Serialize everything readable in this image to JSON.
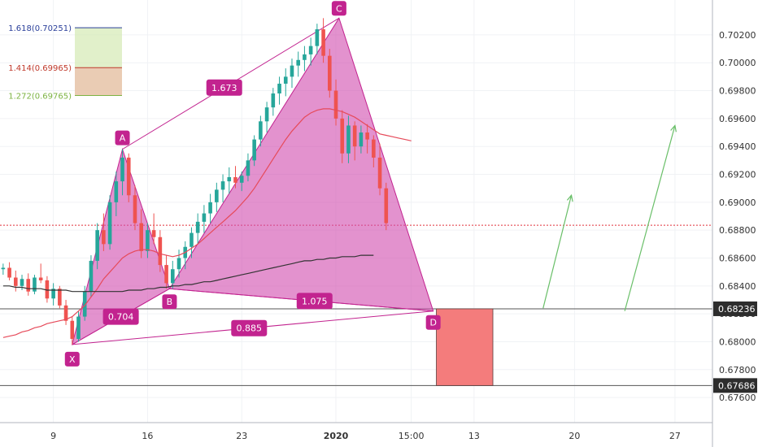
{
  "chart_data": {
    "type": "candlestick",
    "instrument_note": "",
    "y_axis": {
      "ylim": [
        0.6742,
        0.7045
      ],
      "ticks": [
        0.676,
        0.678,
        0.68,
        0.682,
        0.684,
        0.686,
        0.688,
        0.69,
        0.692,
        0.694,
        0.696,
        0.698,
        0.7,
        0.702
      ],
      "tick_labels": [
        "0.67600",
        "0.67800",
        "0.68000",
        "0.68200",
        "0.68400",
        "0.68600",
        "0.68800",
        "0.69000",
        "0.69200",
        "0.69400",
        "0.69600",
        "0.69800",
        "0.70000",
        "0.70200"
      ],
      "price_badges": [
        {
          "value": 0.68236,
          "label": "0.68236"
        },
        {
          "value": 0.67686,
          "label": "0.67686"
        }
      ]
    },
    "x_axis": {
      "ticks": [
        {
          "slot": 8.5,
          "label": "9"
        },
        {
          "slot": 23.5,
          "label": "16"
        },
        {
          "slot": 38.5,
          "label": "23"
        },
        {
          "slot": 53.5,
          "label": "2020"
        },
        {
          "slot": 65.5,
          "label": "15:00"
        },
        {
          "slot": 75.5,
          "label": "13"
        },
        {
          "slot": 91.5,
          "label": "20"
        },
        {
          "slot": 107.5,
          "label": "27"
        }
      ]
    },
    "horizontal_lines": [
      {
        "value": 0.68236,
        "style": "solid",
        "color": "#555555"
      },
      {
        "value": 0.67686,
        "style": "solid",
        "color": "#555555"
      },
      {
        "value": 0.68835,
        "style": "dotted",
        "color": "#e0303a"
      }
    ],
    "fib_extension": {
      "levels": [
        {
          "value": 0.70251,
          "label": "1.618(0.70251)",
          "color": "#2a3f9a"
        },
        {
          "value": 0.69965,
          "label": "1.414(0.69965)",
          "color": "#c0392b"
        },
        {
          "value": 0.69765,
          "label": "1.272(0.69765)",
          "color": "#7cb342"
        }
      ]
    },
    "pattern": {
      "points": [
        {
          "name": "X",
          "slot": 11.5,
          "value": 0.6798
        },
        {
          "name": "A",
          "slot": 19.5,
          "value": 0.6938
        },
        {
          "name": "B",
          "slot": 27.0,
          "value": 0.6838
        },
        {
          "name": "C",
          "slot": 54.0,
          "value": 0.7032
        },
        {
          "name": "D",
          "slot": 69.0,
          "value": 0.6822
        }
      ],
      "ratios": [
        {
          "label": "1.673",
          "between": "A-C"
        },
        {
          "label": "0.704",
          "between": "X-B"
        },
        {
          "label": "1.075",
          "between": "B-D"
        },
        {
          "label": "0.885",
          "between": "X-D"
        }
      ],
      "fill_color": "#d24fb0",
      "line_color": "#c2238f"
    },
    "target_box": {
      "slot_from": 69.5,
      "slot_to": 78.5,
      "top": 0.68236,
      "bottom": 0.67686,
      "color": "#f47c7c"
    },
    "projection_arrows": [
      {
        "from": [
          86.5,
          0.6824
        ],
        "to": [
          91.0,
          0.6905
        ]
      },
      {
        "from": [
          99.5,
          0.6822
        ],
        "to": [
          107.5,
          0.6955
        ]
      }
    ],
    "moving_averages": [
      {
        "color": "#e64a5a",
        "values": [
          0.6803,
          0.6804,
          0.6805,
          0.6807,
          0.6808,
          0.681,
          0.6811,
          0.6813,
          0.6814,
          0.6815,
          0.6816,
          0.6818,
          0.6822,
          0.6826,
          0.6832,
          0.6838,
          0.6845,
          0.685,
          0.6855,
          0.686,
          0.6863,
          0.6865,
          0.6866,
          0.6866,
          0.6865,
          0.6863,
          0.6862,
          0.6861,
          0.6862,
          0.6864,
          0.6867,
          0.687,
          0.6874,
          0.6878,
          0.6882,
          0.6886,
          0.689,
          0.6894,
          0.6899,
          0.6904,
          0.691,
          0.6917,
          0.6924,
          0.6931,
          0.6938,
          0.6945,
          0.6951,
          0.6956,
          0.6961,
          0.6964,
          0.6966,
          0.6967,
          0.6967,
          0.6966,
          0.6965,
          0.6963,
          0.6961,
          0.6958,
          0.6955,
          0.6952,
          0.6949,
          0.6948,
          0.6947,
          0.6946,
          0.6945,
          0.6944
        ]
      },
      {
        "color": "#333333",
        "values": [
          0.684,
          0.684,
          0.6839,
          0.6839,
          0.6838,
          0.6838,
          0.6838,
          0.6837,
          0.6837,
          0.6837,
          0.6837,
          0.6836,
          0.6836,
          0.6836,
          0.6836,
          0.6836,
          0.6836,
          0.6836,
          0.6836,
          0.6836,
          0.6837,
          0.6837,
          0.6837,
          0.6838,
          0.6838,
          0.6839,
          0.6839,
          0.684,
          0.684,
          0.6841,
          0.6841,
          0.6842,
          0.6843,
          0.6843,
          0.6844,
          0.6845,
          0.6846,
          0.6847,
          0.6848,
          0.6849,
          0.685,
          0.6851,
          0.6852,
          0.6853,
          0.6854,
          0.6855,
          0.6856,
          0.6857,
          0.6858,
          0.6858,
          0.6859,
          0.6859,
          0.686,
          0.686,
          0.6861,
          0.6861,
          0.6861,
          0.6862,
          0.6862,
          0.6862
        ]
      }
    ],
    "candles": [
      [
        0.6852,
        0.6856,
        0.6848,
        0.6853
      ],
      [
        0.6853,
        0.6857,
        0.6844,
        0.6846
      ],
      [
        0.6846,
        0.6851,
        0.6836,
        0.684
      ],
      [
        0.684,
        0.6848,
        0.6837,
        0.6845
      ],
      [
        0.6845,
        0.6849,
        0.6833,
        0.6836
      ],
      [
        0.6836,
        0.6848,
        0.6834,
        0.6846
      ],
      [
        0.6846,
        0.6856,
        0.6842,
        0.6844
      ],
      [
        0.6844,
        0.6847,
        0.6828,
        0.6831
      ],
      [
        0.6831,
        0.6842,
        0.6826,
        0.6838
      ],
      [
        0.6838,
        0.684,
        0.6824,
        0.6826
      ],
      [
        0.6826,
        0.683,
        0.6812,
        0.6815
      ],
      [
        0.6815,
        0.6818,
        0.6798,
        0.6802
      ],
      [
        0.6802,
        0.6822,
        0.68,
        0.6818
      ],
      [
        0.6818,
        0.684,
        0.6815,
        0.6836
      ],
      [
        0.6836,
        0.6862,
        0.6832,
        0.6858
      ],
      [
        0.6858,
        0.6885,
        0.6852,
        0.688
      ],
      [
        0.688,
        0.6892,
        0.6865,
        0.687
      ],
      [
        0.687,
        0.6905,
        0.6866,
        0.69
      ],
      [
        0.69,
        0.6922,
        0.689,
        0.6915
      ],
      [
        0.6915,
        0.6938,
        0.6905,
        0.6932
      ],
      [
        0.6932,
        0.6935,
        0.69,
        0.6905
      ],
      [
        0.6905,
        0.6912,
        0.688,
        0.6885
      ],
      [
        0.6885,
        0.6895,
        0.686,
        0.6865
      ],
      [
        0.6865,
        0.6885,
        0.686,
        0.688
      ],
      [
        0.688,
        0.6892,
        0.687,
        0.6875
      ],
      [
        0.6875,
        0.688,
        0.685,
        0.6855
      ],
      [
        0.6855,
        0.6862,
        0.6838,
        0.6842
      ],
      [
        0.6842,
        0.6858,
        0.6838,
        0.6852
      ],
      [
        0.6852,
        0.6866,
        0.6846,
        0.686
      ],
      [
        0.686,
        0.6872,
        0.6852,
        0.6868
      ],
      [
        0.6868,
        0.6882,
        0.686,
        0.6878
      ],
      [
        0.6878,
        0.6892,
        0.687,
        0.6886
      ],
      [
        0.6886,
        0.6898,
        0.6878,
        0.6892
      ],
      [
        0.6892,
        0.6906,
        0.6885,
        0.69
      ],
      [
        0.69,
        0.6914,
        0.6893,
        0.6909
      ],
      [
        0.6909,
        0.692,
        0.69,
        0.6915
      ],
      [
        0.6915,
        0.6925,
        0.6906,
        0.6918
      ],
      [
        0.6918,
        0.6926,
        0.691,
        0.6914
      ],
      [
        0.6914,
        0.6922,
        0.6908,
        0.6919
      ],
      [
        0.6919,
        0.6935,
        0.6915,
        0.693
      ],
      [
        0.693,
        0.6948,
        0.6926,
        0.6945
      ],
      [
        0.6945,
        0.6962,
        0.694,
        0.6958
      ],
      [
        0.6958,
        0.6972,
        0.695,
        0.6968
      ],
      [
        0.6968,
        0.6982,
        0.6962,
        0.6978
      ],
      [
        0.6978,
        0.699,
        0.697,
        0.6985
      ],
      [
        0.6985,
        0.6996,
        0.6976,
        0.699
      ],
      [
        0.699,
        0.7003,
        0.6982,
        0.6998
      ],
      [
        0.6998,
        0.7008,
        0.699,
        0.7002
      ],
      [
        0.7002,
        0.7012,
        0.6994,
        0.7006
      ],
      [
        0.7006,
        0.7018,
        0.6998,
        0.7012
      ],
      [
        0.7012,
        0.7028,
        0.7006,
        0.7024
      ],
      [
        0.7024,
        0.7032,
        0.7,
        0.7005
      ],
      [
        0.7005,
        0.701,
        0.6975,
        0.698
      ],
      [
        0.698,
        0.6988,
        0.6955,
        0.696
      ],
      [
        0.696,
        0.6966,
        0.6928,
        0.6935
      ],
      [
        0.6935,
        0.6962,
        0.6928,
        0.6955
      ],
      [
        0.6955,
        0.6958,
        0.693,
        0.694
      ],
      [
        0.694,
        0.6955,
        0.6935,
        0.695
      ],
      [
        0.695,
        0.6956,
        0.6935,
        0.6945
      ],
      [
        0.6945,
        0.6948,
        0.6925,
        0.6932
      ],
      [
        0.6932,
        0.6942,
        0.6905,
        0.691
      ],
      [
        0.691,
        0.6914,
        0.688,
        0.6885
      ]
    ]
  }
}
